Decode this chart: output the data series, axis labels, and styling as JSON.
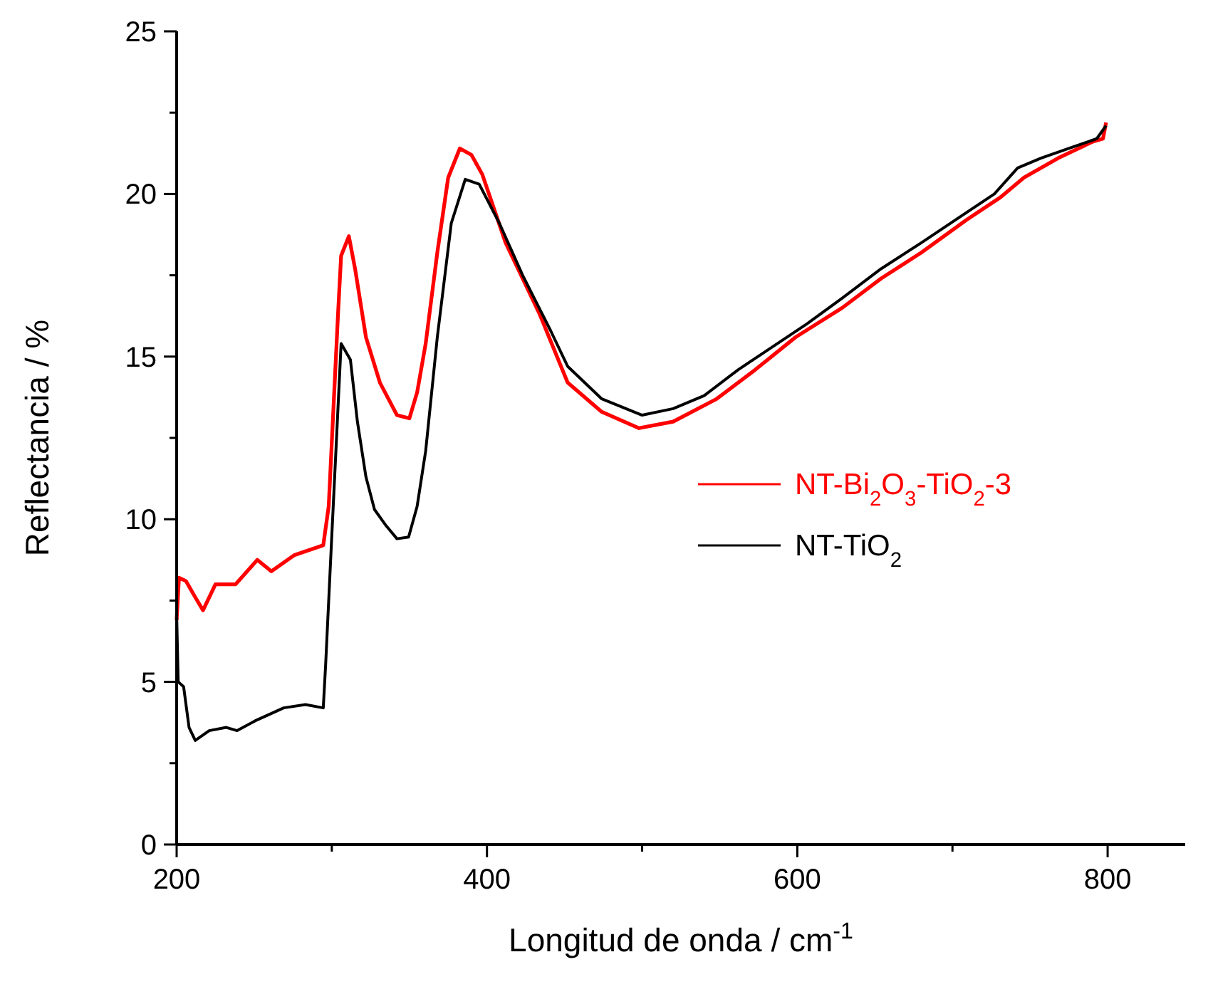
{
  "chart_data": {
    "type": "line",
    "xlabel": "Longitud de onda / cm$^{-1}$",
    "ylabel": "Reflectancia / %",
    "xlim": [
      200,
      850
    ],
    "xticks": [
      200,
      {
        "value": 300,
        "label": null
      },
      400,
      {
        "value": 500,
        "label": null
      },
      600,
      {
        "value": 700,
        "label": null
      },
      800
    ],
    "ylim": [
      0,
      25
    ],
    "yticks": [
      0,
      {
        "value": 2.5,
        "label": null
      },
      5,
      {
        "value": 7.5,
        "label": null
      },
      10,
      {
        "value": 12.5,
        "label": null
      },
      15,
      {
        "value": 17.5,
        "label": null
      },
      20,
      {
        "value": 22.5,
        "label": null
      },
      25
    ],
    "grid": false,
    "legend": "right",
    "line_style": "solid",
    "marker": "none",
    "series": [
      {
        "name": "NT-Bi$_{2}$O$_{3}$-TiO$_{2}$-3",
        "color": "#ff0000",
        "x": [
          200,
          201.5,
          206,
          212,
          217,
          225,
          238,
          252,
          261,
          276,
          294.5,
          298,
          304,
          306,
          311,
          315,
          322,
          331,
          342,
          350,
          355,
          360.5,
          368,
          375,
          382.5,
          390,
          397,
          412,
          434,
          452,
          474,
          498,
          520,
          548,
          573,
          599,
          629,
          654,
          680,
          709,
          731,
          746,
          768,
          790,
          797,
          799
        ],
        "values": [
          6.9,
          8.2,
          8.1,
          7.6,
          7.2,
          8.0,
          8.0,
          8.75,
          8.4,
          8.9,
          9.2,
          10.4,
          16.3,
          18.1,
          18.7,
          17.7,
          15.6,
          14.2,
          13.2,
          13.1,
          13.9,
          15.4,
          18.2,
          20.5,
          21.4,
          21.2,
          20.6,
          18.5,
          16.3,
          14.2,
          13.3,
          12.8,
          13.0,
          13.7,
          14.6,
          15.6,
          16.5,
          17.4,
          18.2,
          19.2,
          19.9,
          20.5,
          21.1,
          21.6,
          21.7,
          22.2
        ]
      },
      {
        "name": "NT-TiO$_{2}$",
        "color": "#000000",
        "x": [
          200,
          201,
          204.5,
          208,
          212,
          221,
          232,
          239,
          250.5,
          269,
          283,
          294.5,
          296,
          300,
          306,
          312,
          316.5,
          322,
          327.5,
          335,
          342,
          349.5,
          355,
          360.5,
          368,
          377,
          386,
          395,
          408,
          423,
          441,
          452,
          474,
          500,
          520,
          540,
          562,
          584,
          606,
          629,
          654,
          680,
          705,
          727,
          742,
          757,
          775,
          793,
          799
        ],
        "values": [
          7.1,
          5.0,
          4.85,
          3.6,
          3.2,
          3.5,
          3.6,
          3.5,
          3.8,
          4.2,
          4.3,
          4.2,
          5.5,
          9.5,
          15.4,
          14.9,
          13.0,
          11.3,
          10.3,
          9.8,
          9.4,
          9.45,
          10.4,
          12.1,
          15.6,
          19.1,
          20.45,
          20.3,
          19.1,
          17.5,
          15.8,
          14.7,
          13.7,
          13.2,
          13.4,
          13.8,
          14.6,
          15.3,
          16.0,
          16.8,
          17.7,
          18.5,
          19.3,
          20.0,
          20.8,
          21.1,
          21.4,
          21.7,
          22.1
        ]
      }
    ]
  }
}
